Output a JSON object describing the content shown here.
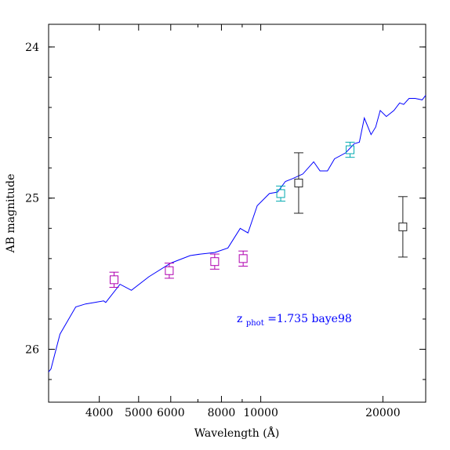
{
  "chart_data": {
    "type": "scatter",
    "title": "",
    "xlabel": "Wavelength (Å)",
    "ylabel": "AB magnitude",
    "x_scale": "log",
    "xlim": [
      3000,
      25500
    ],
    "ylim": [
      26.35,
      23.85
    ],
    "x_ticks": [
      {
        "value": 4000,
        "label": "4000"
      },
      {
        "value": 5000,
        "label": "5000"
      },
      {
        "value": 6000,
        "label": "6000"
      },
      {
        "value": 8000,
        "label": "8000"
      },
      {
        "value": 10000,
        "label": "10000"
      },
      {
        "value": 20000,
        "label": "20000"
      }
    ],
    "x_minor_ticks": [
      3000,
      7000,
      9000,
      30000
    ],
    "y_ticks": [
      {
        "value": 24,
        "label": "24"
      },
      {
        "value": 25,
        "label": "25"
      },
      {
        "value": 26,
        "label": "26"
      }
    ],
    "y_minor_step": 0.2,
    "annotation": {
      "prefix": "z",
      "subscript": "phot",
      "text": "=1.735 baye98",
      "color": "#0000ff"
    },
    "colors": {
      "model": "#0000ff",
      "series_magenta": "#b000b0",
      "series_cyan": "#00aab0",
      "series_black": "#222222"
    },
    "series": [
      {
        "type": "line",
        "color": "#0000ff",
        "x": [
          3000,
          3040,
          3200,
          3500,
          3700,
          3900,
          4100,
          4150,
          4500,
          4800,
          5300,
          6000,
          6700,
          7100,
          7700,
          8300,
          8900,
          9300,
          9800,
          10500,
          11000,
          11500,
          12000,
          12700,
          13500,
          14000,
          14600,
          15200,
          16200,
          17000,
          17500,
          18000,
          18700,
          19200,
          19700,
          20400,
          21300,
          22000,
          22500,
          23200,
          24000,
          25000,
          25500
        ],
        "y": [
          26.15,
          26.13,
          25.9,
          25.72,
          25.7,
          25.69,
          25.68,
          25.69,
          25.57,
          25.61,
          25.52,
          25.43,
          25.38,
          25.37,
          25.36,
          25.33,
          25.2,
          25.23,
          25.05,
          24.97,
          24.96,
          24.89,
          24.87,
          24.84,
          24.76,
          24.82,
          24.82,
          24.74,
          24.7,
          24.64,
          24.63,
          24.47,
          24.58,
          24.53,
          24.42,
          24.46,
          24.42,
          24.37,
          24.38,
          24.34,
          24.34,
          24.35,
          24.32
        ]
      },
      {
        "type": "errorbar",
        "color": "#b000b0",
        "points": [
          {
            "x": 4350,
            "y": 25.54,
            "err": 0.05
          },
          {
            "x": 5950,
            "y": 25.48,
            "err": 0.05
          },
          {
            "x": 7700,
            "y": 25.42,
            "err": 0.05
          },
          {
            "x": 9050,
            "y": 25.4,
            "err": 0.05
          }
        ]
      },
      {
        "type": "errorbar",
        "color": "#00aab0",
        "points": [
          {
            "x": 11200,
            "y": 24.97,
            "err": 0.05
          },
          {
            "x": 16600,
            "y": 24.68,
            "err": 0.05
          }
        ]
      },
      {
        "type": "errorbar",
        "color": "#222222",
        "points": [
          {
            "x": 12400,
            "y": 24.9,
            "err": 0.2
          },
          {
            "x": 22400,
            "y": 25.19,
            "err": 0.2
          }
        ]
      }
    ]
  }
}
